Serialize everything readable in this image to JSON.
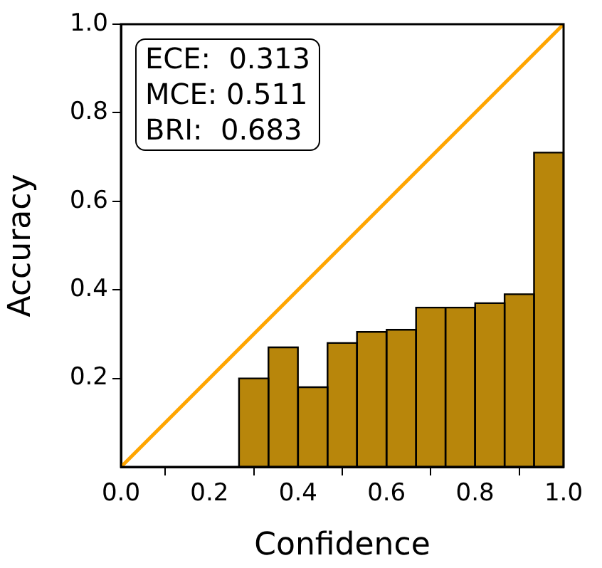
{
  "chart_data": {
    "type": "histogram",
    "xlabel": "Confidence",
    "ylabel": "Accuracy",
    "bins": [
      0,
      0.067,
      0.133,
      0.2,
      0.267,
      0.333,
      0.4,
      0.467,
      0.533,
      0.6,
      0.667,
      0.733,
      0.8,
      0.867,
      0.933,
      1
    ],
    "values": [
      0,
      0,
      0,
      0,
      0.2,
      0.27,
      0.18,
      0.28,
      0.305,
      0.31,
      0.36,
      0.36,
      0.37,
      0.39,
      0.71
    ],
    "color": "#b8860b",
    "series": [
      {
        "type": "line",
        "x": [
          0,
          1
        ],
        "values": [
          0,
          1
        ],
        "color": "#ffa500"
      }
    ],
    "xlim": [
      0,
      1
    ],
    "xticks": [
      {
        "value": 0,
        "label": "0.0"
      },
      {
        "value": 0.2,
        "label": "0.2"
      },
      {
        "value": 0.4,
        "label": "0.4"
      },
      {
        "value": 0.6,
        "label": "0.6"
      },
      {
        "value": 0.8,
        "label": "0.8"
      },
      {
        "value": 1,
        "label": "1.0"
      }
    ],
    "ylim": [
      0,
      1
    ],
    "yticks": [
      {
        "value": 0.2,
        "label": "0.2"
      },
      {
        "value": 0.4,
        "label": "0.4"
      },
      {
        "value": 0.6,
        "label": "0.6"
      },
      {
        "value": 0.8,
        "label": "0.8"
      },
      {
        "value": 1,
        "label": "1.0"
      }
    ],
    "grid": false,
    "legend": false,
    "annotations": [
      "ECE:  0.313",
      "MCE: 0.511",
      "BRI:  0.683"
    ]
  }
}
